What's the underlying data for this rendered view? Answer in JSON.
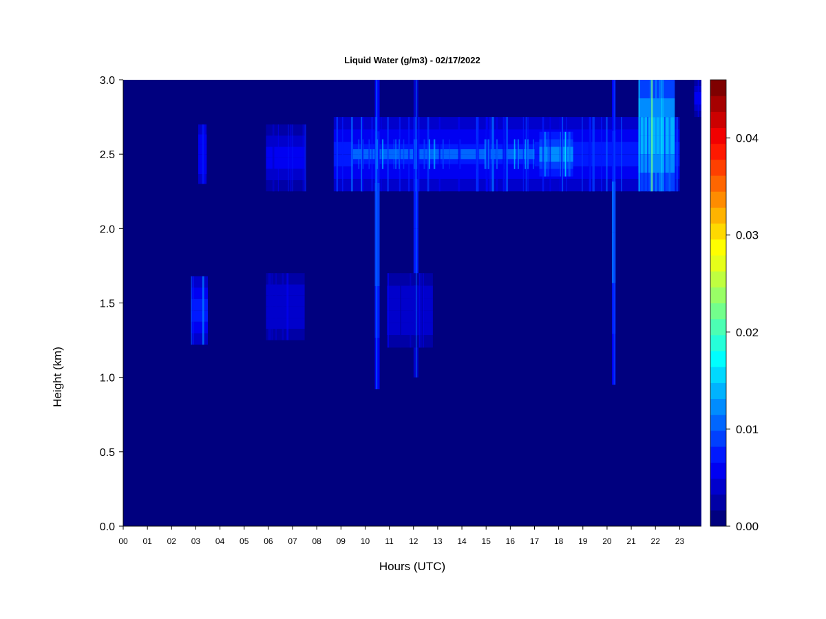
{
  "chart_data": {
    "type": "heatmap",
    "title": "Liquid Water (g/m3) - 02/17/2022",
    "xlabel": "Hours (UTC)",
    "ylabel": "Height (km)",
    "xlim": [
      0,
      23.9
    ],
    "ylim": [
      0,
      3.0
    ],
    "x_ticks": [
      "00",
      "01",
      "02",
      "03",
      "04",
      "05",
      "06",
      "07",
      "08",
      "09",
      "10",
      "11",
      "12",
      "13",
      "14",
      "15",
      "16",
      "17",
      "18",
      "19",
      "20",
      "21",
      "22",
      "23"
    ],
    "y_ticks": [
      "0.0",
      "0.5",
      "1.0",
      "1.5",
      "2.0",
      "2.5",
      "3.0"
    ],
    "background_value": 0.0,
    "colorbar": {
      "min": 0.0,
      "max": 0.046,
      "tick_values": [
        0.0,
        0.01,
        0.02,
        0.03,
        0.04
      ],
      "tick_labels": [
        "0.00",
        "0.01",
        "0.02",
        "0.03",
        "0.04"
      ],
      "colors": [
        "#00007f",
        "#0000a6",
        "#0000cc",
        "#0000f2",
        "#0019ff",
        "#0040ff",
        "#0066ff",
        "#008cff",
        "#00b3ff",
        "#00d9ff",
        "#00ffff",
        "#26ffd9",
        "#4cffb3",
        "#73ff8c",
        "#99ff66",
        "#bfff40",
        "#e6ff19",
        "#ffff00",
        "#ffd900",
        "#ffb300",
        "#ff8c00",
        "#ff6600",
        "#ff4000",
        "#ff1900",
        "#f20000",
        "#cc0000",
        "#a60000",
        "#7f0000"
      ]
    },
    "regions": [
      {
        "x": [
          8.7,
          23.0
        ],
        "y": [
          2.25,
          2.75
        ],
        "value": 0.008
      },
      {
        "x": [
          9.5,
          17.0
        ],
        "y": [
          2.4,
          2.6
        ],
        "value": 0.011
      },
      {
        "x": [
          17.2,
          18.6
        ],
        "y": [
          2.35,
          2.65
        ],
        "value": 0.013
      },
      {
        "x": [
          21.3,
          22.8
        ],
        "y": [
          2.25,
          3.0
        ],
        "value": 0.016
      },
      {
        "x": [
          2.8,
          3.5
        ],
        "y": [
          1.22,
          1.68
        ],
        "value": 0.009
      },
      {
        "x": [
          5.9,
          7.5
        ],
        "y": [
          2.25,
          2.7
        ],
        "value": 0.006
      },
      {
        "x": [
          5.9,
          7.5
        ],
        "y": [
          1.25,
          1.7
        ],
        "value": 0.005
      },
      {
        "x": [
          3.1,
          3.45
        ],
        "y": [
          2.3,
          2.7
        ],
        "value": 0.007
      },
      {
        "x": [
          20.2,
          20.35
        ],
        "y": [
          0.95,
          3.0
        ],
        "value": 0.011
      },
      {
        "x": [
          10.4,
          10.6
        ],
        "y": [
          0.92,
          3.0
        ],
        "value": 0.01
      },
      {
        "x": [
          12.0,
          12.2
        ],
        "y": [
          1.0,
          3.0
        ],
        "value": 0.009
      },
      {
        "x": [
          23.6,
          23.9
        ],
        "y": [
          2.75,
          3.0
        ],
        "value": 0.006
      },
      {
        "x": [
          10.9,
          12.8
        ],
        "y": [
          1.2,
          1.7
        ],
        "value": 0.005
      }
    ]
  }
}
